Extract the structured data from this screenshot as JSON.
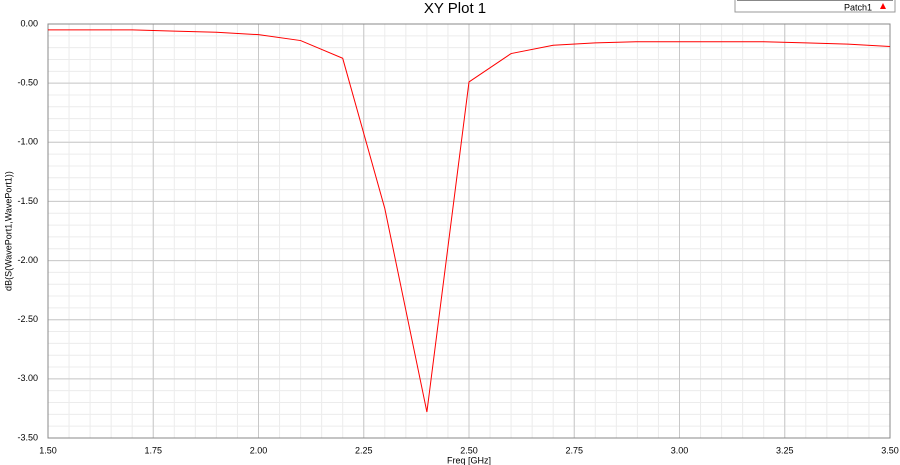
{
  "chart_data": {
    "type": "line",
    "title": "XY Plot 1",
    "x_label": "Freq [GHz]",
    "y_label": "dB(S(WavePort1,WavePort1))",
    "x": [
      1.5,
      1.6,
      1.7,
      1.8,
      1.9,
      2.0,
      2.1,
      2.2,
      2.3,
      2.4,
      2.5,
      2.6,
      2.7,
      2.8,
      2.9,
      3.0,
      3.1,
      3.2,
      3.3,
      3.4,
      3.5
    ],
    "series": [
      {
        "name": "Patch1",
        "color": "#ff0000",
        "values": [
          -0.05,
          -0.05,
          -0.05,
          -0.06,
          -0.07,
          -0.09,
          -0.14,
          -0.29,
          -1.56,
          -3.28,
          -0.49,
          -0.25,
          -0.18,
          -0.16,
          -0.15,
          -0.15,
          -0.15,
          -0.15,
          -0.16,
          -0.17,
          -0.19
        ]
      }
    ],
    "xlim": [
      1.5,
      3.5
    ],
    "xticks": [
      {
        "value": 1.5,
        "label": "1.50"
      },
      1.75,
      {
        "value": 2,
        "label": "2.00"
      },
      2.25,
      {
        "value": 2.5,
        "label": "2.50"
      },
      2.75,
      {
        "value": 3,
        "label": "3.00"
      },
      3.25,
      {
        "value": 3.5,
        "label": "3.50"
      }
    ],
    "ylim": [
      -3.5,
      0
    ],
    "yticks": [
      {
        "value": 0,
        "label": "0.00"
      },
      {
        "value": -0.5,
        "label": "-0.50"
      },
      {
        "value": -1,
        "label": "-1.00"
      },
      {
        "value": -1.5,
        "label": "-1.50"
      },
      {
        "value": -2,
        "label": "-2.00"
      },
      {
        "value": -2.5,
        "label": "-2.50"
      },
      {
        "value": -3,
        "label": "-3.00"
      },
      {
        "value": -3.5,
        "label": "-3.50"
      }
    ],
    "grid": true,
    "legend": "top-right"
  }
}
